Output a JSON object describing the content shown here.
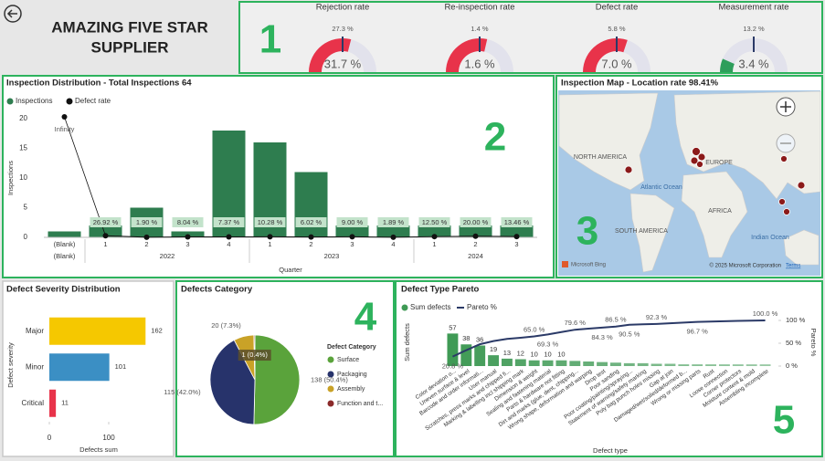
{
  "header": {
    "title_lines": [
      "AMAZING FIVE STAR",
      "SUPPLIER"
    ]
  },
  "annotations": [
    "1",
    "2",
    "3",
    "4",
    "5"
  ],
  "chart_data": [
    {
      "type": "gauge",
      "gauges": [
        {
          "title": "Rejection rate",
          "target": 27.3,
          "target_label": "27.3 %",
          "value": 31.7,
          "value_label": "31.7 %",
          "lim": [
            0,
            54.6
          ],
          "color": "#e8334a"
        },
        {
          "title": "Re-inspection rate",
          "target": 1.4,
          "target_label": "1.4 %",
          "value": 1.6,
          "value_label": "1.6 %",
          "lim": [
            0,
            2.8
          ],
          "color": "#e8334a"
        },
        {
          "title": "Defect rate",
          "target": 5.8,
          "target_label": "5.8 %",
          "value": 7.0,
          "value_label": "7.0 %",
          "lim": [
            0,
            11.6
          ],
          "color": "#e8334a"
        },
        {
          "title": "Measurement rate",
          "target": 13.2,
          "target_label": "13.2 %",
          "value": 3.4,
          "value_label": "3.4 %",
          "lim": [
            0,
            26.4
          ],
          "color": "#2e9e5b"
        }
      ]
    },
    {
      "type": "combo",
      "title": "Inspection Distribution - Total Inspections 64",
      "x_label": "Quarter",
      "y_label": "Inspections",
      "categories": [
        {
          "quarter": "(Blank)",
          "year": "(Blank)"
        },
        {
          "quarter": "1",
          "year": "2022"
        },
        {
          "quarter": "2",
          "year": "2022"
        },
        {
          "quarter": "3",
          "year": "2022"
        },
        {
          "quarter": "4",
          "year": "2022"
        },
        {
          "quarter": "1",
          "year": "2023"
        },
        {
          "quarter": "2",
          "year": "2023"
        },
        {
          "quarter": "3",
          "year": "2023"
        },
        {
          "quarter": "4",
          "year": "2023"
        },
        {
          "quarter": "1",
          "year": "2024"
        },
        {
          "quarter": "2",
          "year": "2024"
        },
        {
          "quarter": "3",
          "year": "2024"
        }
      ],
      "series": [
        {
          "name": "Inspections",
          "color": "#2e7d4f",
          "values": [
            1,
            2,
            5,
            1,
            18,
            16,
            11,
            2,
            2,
            2,
            2,
            2
          ]
        },
        {
          "name": "Defect rate",
          "type": "line",
          "color": "#111111",
          "values": [
            null,
            0.2692,
            0.019,
            0.0804,
            0.0737,
            0.1028,
            0.0602,
            0.09,
            0.0189,
            0.125,
            0.2,
            0.1346
          ],
          "value_labels": [
            "Infinity",
            "26.92 %",
            "1.90 %",
            "8.04 %",
            "7.37 %",
            "10.28 %",
            "6.02 %",
            "9.00 %",
            "1.89 %",
            "12.50 %",
            "20.00 %",
            "13.46 %"
          ]
        }
      ],
      "ylim": [
        0,
        22
      ],
      "yticks": [
        0,
        5,
        10,
        15,
        20
      ],
      "grid": false
    },
    {
      "type": "map",
      "title": "Inspection Map - Location rate 98.41%",
      "labels": [
        "NORTH AMERICA",
        "EUROPE",
        "Atlantic Ocean",
        "SOUTH AMERICA",
        "AFRICA",
        "Indian Ocean"
      ],
      "brand": "Microsoft Bing",
      "attribution": "© 2025 Microsoft Corporation",
      "terms": "Terms"
    },
    {
      "type": "barh",
      "title": "Defect Severity Distribution",
      "categories": [
        "Major",
        "Minor",
        "Critical"
      ],
      "values": [
        162,
        101,
        11
      ],
      "colors": [
        "#f5c800",
        "#3b8fc4",
        "#e8334a"
      ],
      "xlim": [
        0,
        170
      ],
      "xticks": [
        0,
        100
      ],
      "x_label": "Defects sum",
      "y_label": "Defect severity"
    },
    {
      "type": "pie",
      "title": "Defects Category",
      "legend_title": "Defect Category",
      "categories": [
        "Surface",
        "Packaging",
        "Assembly",
        "Function and t..."
      ],
      "values": [
        138,
        115,
        20,
        1
      ],
      "value_labels": [
        "138 (50.4%)",
        "115 (42.0%)",
        "20 (7.3%)",
        "1 (0.4%)"
      ],
      "colors": [
        "#5aa33b",
        "#27336b",
        "#c9a227",
        "#8b2a2a"
      ]
    },
    {
      "type": "pareto",
      "title": "Defect Type Pareto",
      "x_label": "Defect type",
      "y_label": "Sum defects",
      "y2_label": "Pareto %",
      "categories": [
        "Color deviation o...",
        "Uneven surface & level",
        "Barcode and order informati...",
        "User manual",
        "Scratches, press marks and chipped fi...",
        "Marking & labelling incl shipping mark",
        "Dimension & weight",
        "Sealing and fastening material",
        "Parts & hardware not fitting",
        "Dirt and marks (glue, dent, chipping...",
        "Wrong shape, deformation and warping",
        "Drop test",
        "Poor sanding",
        "Poor coating/painting/spraying...",
        "Statement of warning/safety marking",
        "Poly bag punch holes missing",
        "Gap at join",
        "Damaged/wet/soiled/deformed b...",
        "Wrong or missing parts",
        "Rust",
        "Loose connection",
        "Corner protectors",
        "Moisture content & mold",
        "Assembling incomplete"
      ],
      "series": [
        {
          "name": "Sum defects",
          "color": "#3f9a55",
          "values": [
            57,
            38,
            36,
            19,
            13,
            12,
            10,
            10,
            10,
            9,
            8,
            7,
            6,
            5,
            5,
            4,
            4,
            3,
            3,
            3,
            3,
            3,
            3,
            3
          ],
          "value_labels": [
            "57",
            "38",
            "36",
            "19",
            "13",
            "12",
            "10",
            "10",
            "10",
            null,
            null,
            null,
            null,
            null,
            null,
            null,
            null,
            null,
            null,
            null,
            null,
            null,
            null,
            null
          ]
        },
        {
          "name": "Pareto %",
          "axis": "y2",
          "color": "#2b3a67",
          "values": [
            20.8,
            34.7,
            47.8,
            54.7,
            59.5,
            62.0,
            65.0,
            69.3,
            74.5,
            79.6,
            82.0,
            84.3,
            86.5,
            90.5,
            91.4,
            92.3,
            93.8,
            95.2,
            96.7,
            97.5,
            98.2,
            98.9,
            99.5,
            100.0
          ],
          "value_labels": [
            "20.8 %",
            null,
            null,
            null,
            null,
            null,
            "65.0 %",
            "69.3 %",
            null,
            "79.6 %",
            null,
            "84.3 %",
            "86.5 %",
            "90.5 %",
            null,
            "92.3 %",
            null,
            null,
            "96.7 %",
            null,
            null,
            null,
            null,
            "100.0 %"
          ]
        }
      ],
      "ylim": [
        0,
        80
      ],
      "y2lim": [
        0,
        100
      ],
      "y2ticks": [
        {
          "value": 0,
          "label": "0 %"
        },
        {
          "value": 50,
          "label": "50 %"
        },
        {
          "value": 100,
          "label": "100 %"
        }
      ]
    }
  ]
}
